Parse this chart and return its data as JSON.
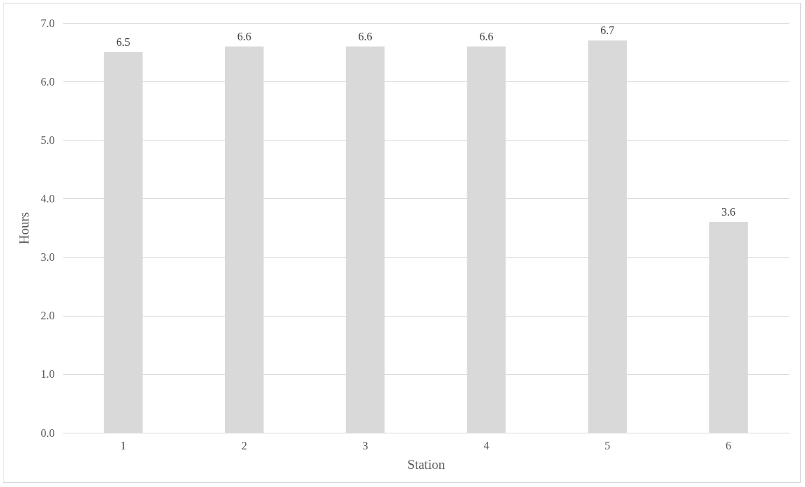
{
  "chart_data": {
    "type": "bar",
    "xlabel": "Station",
    "ylabel": "Hours",
    "categories": [
      "1",
      "2",
      "3",
      "4",
      "5",
      "6"
    ],
    "values": [
      6.5,
      6.6,
      6.6,
      6.6,
      6.7,
      3.6
    ],
    "color": "#d9d9d9",
    "ylim": [
      0,
      7
    ],
    "yticks": [
      {
        "value": 0,
        "label": "0.0"
      },
      {
        "value": 1,
        "label": "1.0"
      },
      {
        "value": 2,
        "label": "2.0"
      },
      {
        "value": 3,
        "label": "3.0"
      },
      {
        "value": 4,
        "label": "4.0"
      },
      {
        "value": 5,
        "label": "5.0"
      },
      {
        "value": 6,
        "label": "6.0"
      },
      {
        "value": 7,
        "label": "7.0"
      }
    ],
    "grid": "y",
    "data_labels": true
  }
}
